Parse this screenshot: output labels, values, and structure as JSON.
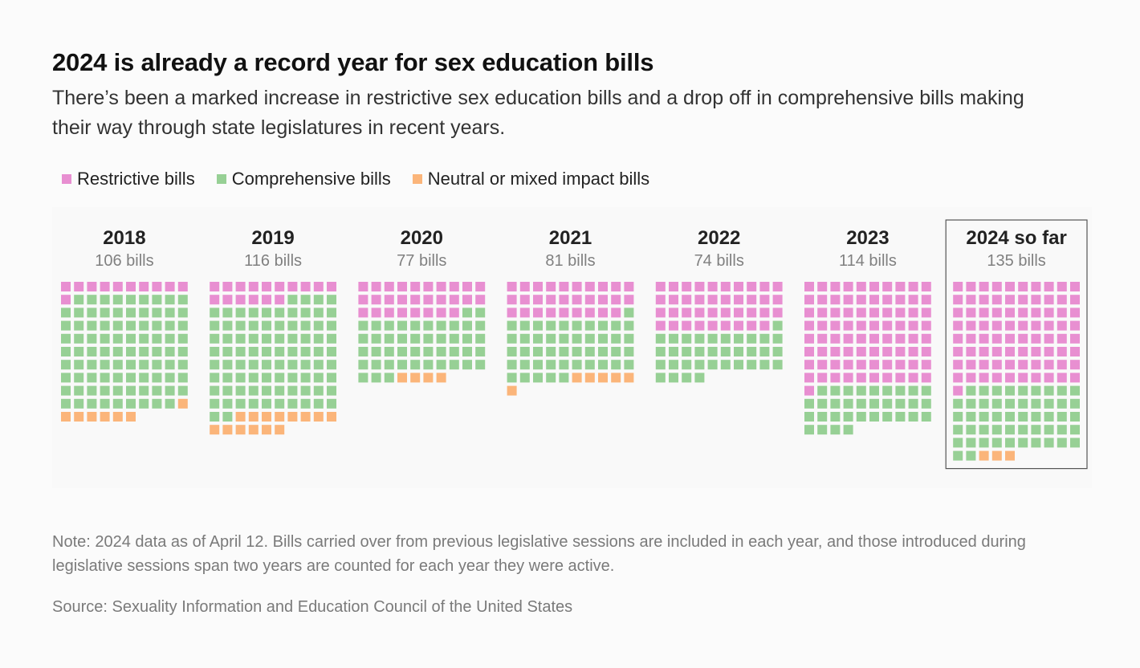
{
  "title": "2024 is already a record year for sex education bills",
  "subtitle": "There’s been a marked increase in restrictive sex education bills and a drop off in comprehensive bills making their way through state legislatures in recent years.",
  "legend": [
    {
      "key": "restrictive",
      "label": "Restrictive bills",
      "color": "#e88fd1"
    },
    {
      "key": "comprehensive",
      "label": "Comprehensive bills",
      "color": "#97d095"
    },
    {
      "key": "neutral",
      "label": "Neutral or mixed impact bills",
      "color": "#fbb57a"
    }
  ],
  "chart_data": {
    "type": "waffle",
    "units_per_square": 1,
    "columns_per_year": 10,
    "categories": [
      "2018",
      "2019",
      "2020",
      "2021",
      "2022",
      "2023",
      "2024 so far"
    ],
    "totals_labels": [
      "106 bills",
      "116 bills",
      "77 bills",
      "81 bills",
      "74 bills",
      "114 bills",
      "135 bills"
    ],
    "highlighted": "2024 so far",
    "series": [
      {
        "name": "Restrictive bills",
        "key": "restrictive",
        "values": [
          11,
          16,
          28,
          29,
          39,
          81,
          81
        ]
      },
      {
        "name": "Comprehensive bills",
        "key": "comprehensive",
        "values": [
          88,
          86,
          45,
          46,
          35,
          33,
          51
        ]
      },
      {
        "name": "Neutral or mixed impact bills",
        "key": "neutral",
        "values": [
          7,
          14,
          4,
          6,
          0,
          0,
          3
        ]
      }
    ]
  },
  "note": "Note: 2024 data as of April 12. Bills carried over from previous legislative sessions are included in each year, and those introduced during legislative sessions span two years are counted for each year they were active.",
  "source": "Source: Sexuality Information and Education Council of the United States"
}
